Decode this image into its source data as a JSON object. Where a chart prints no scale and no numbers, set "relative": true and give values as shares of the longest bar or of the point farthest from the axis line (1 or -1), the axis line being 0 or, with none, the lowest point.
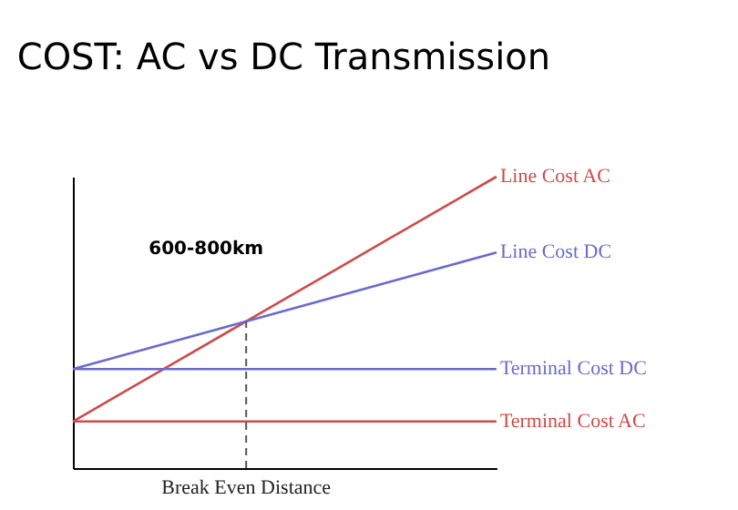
{
  "chart_data": {
    "type": "line",
    "title": "COST: AC vs DC Transmission",
    "relative": true,
    "categories": [
      null,
      null,
      null,
      null,
      null,
      null,
      null,
      null,
      null
    ],
    "series": [
      {
        "name": "Line Cost AC",
        "color": "#d04a4a",
        "values": [
          0.16,
          0.265,
          0.37,
          0.475,
          0.58,
          0.685,
          0.79,
          0.895,
          1.0
        ]
      },
      {
        "name": "Line Cost DC",
        "color": "#6a6ad0",
        "values": [
          0.34,
          0.39,
          0.44,
          0.49,
          0.54,
          0.59,
          0.64,
          0.69,
          0.74
        ]
      },
      {
        "name": "Terminal Cost DC",
        "color": "#6a6ad0",
        "values": [
          0.34,
          0.34,
          0.34,
          0.34,
          0.34,
          0.34,
          0.34,
          0.34,
          0.34
        ]
      },
      {
        "name": "Terminal Cost AC",
        "color": "#d04a4a",
        "values": [
          0.16,
          0.16,
          0.16,
          0.16,
          0.16,
          0.16,
          0.16,
          0.16,
          0.16
        ]
      }
    ],
    "ref_lines": [
      {
        "axis": "x",
        "label": "Break Even Distance",
        "line_style": "dashed"
      }
    ],
    "annotations": [
      "600-800km"
    ]
  }
}
